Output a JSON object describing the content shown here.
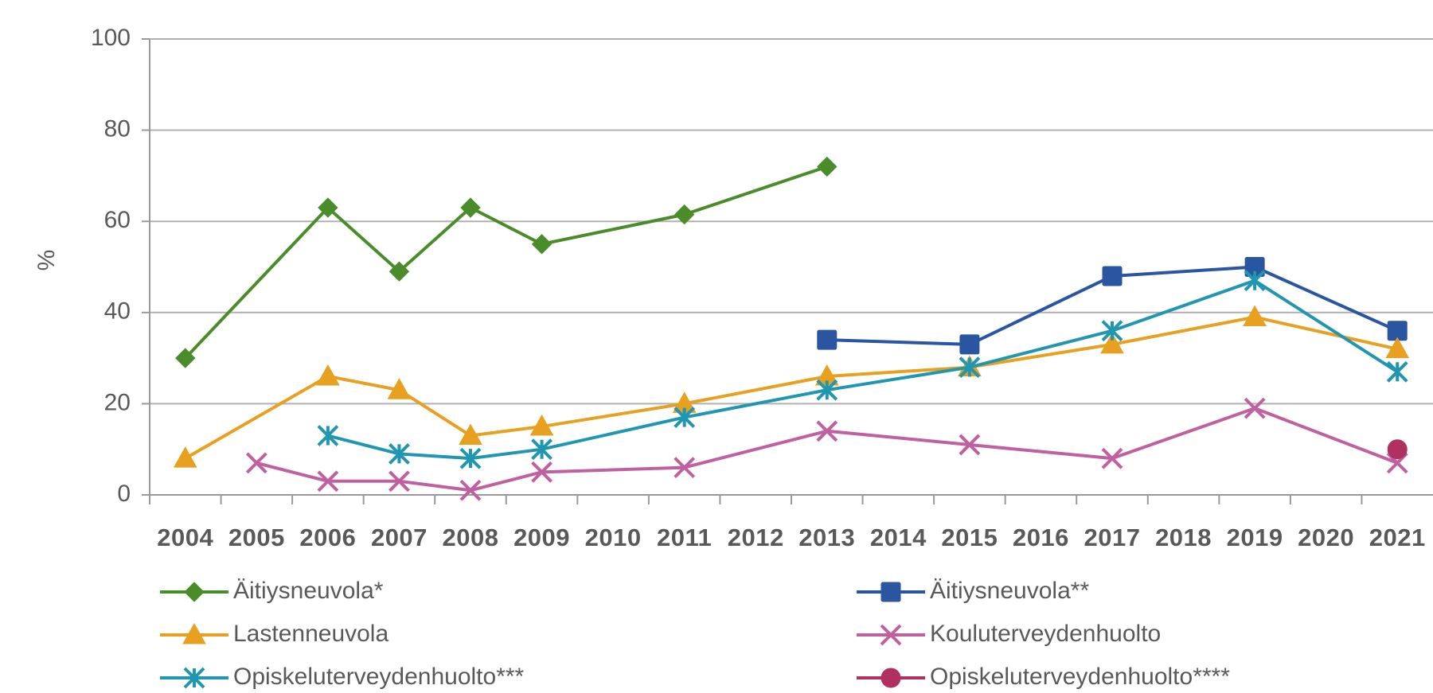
{
  "chart_data": {
    "type": "line",
    "y_label": "%",
    "xlim": [
      2003.5,
      2021.5
    ],
    "xticks": [
      2004,
      2005,
      2006,
      2007,
      2008,
      2009,
      2010,
      2011,
      2012,
      2013,
      2014,
      2015,
      2016,
      2017,
      2018,
      2019,
      2020,
      2021
    ],
    "ylim": [
      0,
      100
    ],
    "yticks": [
      0,
      20,
      40,
      60,
      80,
      100
    ],
    "grid": true,
    "legend": "bottom",
    "series": [
      {
        "name": "Äitiysneuvola*",
        "color": "#4a8c2a",
        "marker": "diamond",
        "x": [
          2004,
          2006,
          2007,
          2008,
          2009,
          2011,
          2013
        ],
        "values": [
          30,
          63,
          49,
          63,
          55,
          61.5,
          72
        ]
      },
      {
        "name": "Äitiysneuvola**",
        "color": "#2a55a0",
        "marker": "square",
        "x": [
          2013,
          2015,
          2017,
          2019,
          2021
        ],
        "values": [
          34,
          33,
          48,
          50,
          36
        ]
      },
      {
        "name": "Lastenneuvola",
        "color": "#e8a020",
        "marker": "triangle",
        "x": [
          2004,
          2006,
          2007,
          2008,
          2009,
          2011,
          2013,
          2015,
          2017,
          2019,
          2021
        ],
        "values": [
          8,
          26,
          23,
          13,
          15,
          20,
          26,
          28,
          33,
          39,
          32
        ]
      },
      {
        "name": "Kouluterveydenhuolto",
        "color": "#c060a0",
        "marker": "x",
        "x": [
          2005,
          2006,
          2007,
          2008,
          2009,
          2011,
          2013,
          2015,
          2017,
          2019,
          2021
        ],
        "values": [
          7,
          3,
          3,
          1,
          5,
          6,
          14,
          11,
          8,
          19,
          7
        ]
      },
      {
        "name": "Opiskeluterveydenhuolto***",
        "color": "#2196b0",
        "marker": "star",
        "x": [
          2006,
          2007,
          2008,
          2009,
          2011,
          2013,
          2015,
          2017,
          2019,
          2021
        ],
        "values": [
          13,
          9,
          8,
          10,
          17,
          23,
          28,
          36,
          47,
          27
        ]
      },
      {
        "name": "Opiskeluterveydenhuolto****",
        "color": "#b03060",
        "marker": "circle",
        "x": [
          2021
        ],
        "values": [
          10
        ]
      }
    ]
  }
}
